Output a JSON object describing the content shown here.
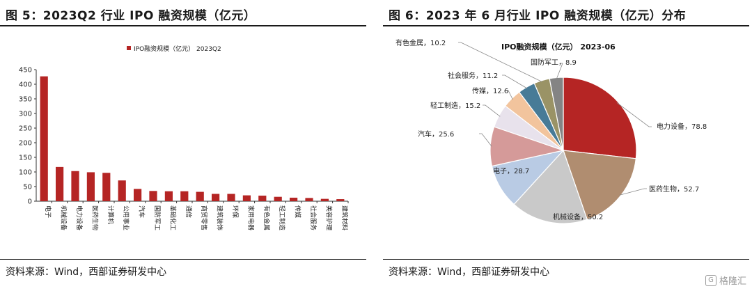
{
  "left": {
    "title": "图 5：2023Q2 行业 IPO 融资规模（亿元）",
    "source": "资料来源：Wind，西部证券研发中心"
  },
  "right": {
    "title": "图 6：2023 年 6 月行业 IPO 融资规模（亿元）分布",
    "source": "资料来源：Wind，西部证券研发中心"
  },
  "watermark": "格隆汇",
  "chart_data": [
    {
      "type": "bar",
      "legend": "IPO融资规模（亿元） 2023Q2",
      "legend_position": "top",
      "ylim": [
        0,
        450
      ],
      "yticks": [
        0,
        50,
        100,
        150,
        200,
        250,
        300,
        350,
        400,
        450
      ],
      "color": "#b52524",
      "categories": [
        "电子",
        "机械设备",
        "电力设备",
        "医药生物",
        "计算机",
        "公用事业",
        "汽车",
        "国防军工",
        "基础化工",
        "通信",
        "商贸零售",
        "建筑装饰",
        "环保",
        "家用电器",
        "有色金属",
        "轻工制造",
        "传媒",
        "社会服务",
        "美容护理",
        "建筑材料"
      ],
      "values": [
        427,
        117,
        103,
        99,
        97,
        71,
        42,
        35,
        34,
        34,
        32,
        25,
        25,
        20,
        19,
        15,
        12,
        11,
        8,
        7
      ],
      "grid": false
    },
    {
      "type": "pie",
      "title": "IPO融资规模（亿元） 2023-06",
      "slices": [
        {
          "label": "电力设备",
          "value": 78.8,
          "display": "78.8",
          "color": "#b52524"
        },
        {
          "label": "医药生物",
          "value": 52.7,
          "display": "52.7",
          "color": "#b08d70"
        },
        {
          "label": "机械设备",
          "value": 50.2,
          "display": "50.2",
          "color": "#c9c9c9"
        },
        {
          "label": "电子",
          "value": 28.7,
          "display": "28.7",
          "color": "#b9cbe4"
        },
        {
          "label": "汽车",
          "value": 25.6,
          "display": "25.6",
          "color": "#d59a99"
        },
        {
          "label": "轻工制造",
          "value": 15.2,
          "display": "15.2",
          "color": "#e8e2ec"
        },
        {
          "label": "传媒",
          "value": 12.6,
          "display": "12.6",
          "color": "#f2c49d"
        },
        {
          "label": "社会服务",
          "value": 11.2,
          "display": "11.2",
          "color": "#477b97"
        },
        {
          "label": "有色金属",
          "value": 10.2,
          "display": "10.2",
          "color": "#9a9366"
        },
        {
          "label": "国防军工",
          "value": 8.9,
          "display": "8.9",
          "color": "#848484"
        }
      ]
    }
  ]
}
